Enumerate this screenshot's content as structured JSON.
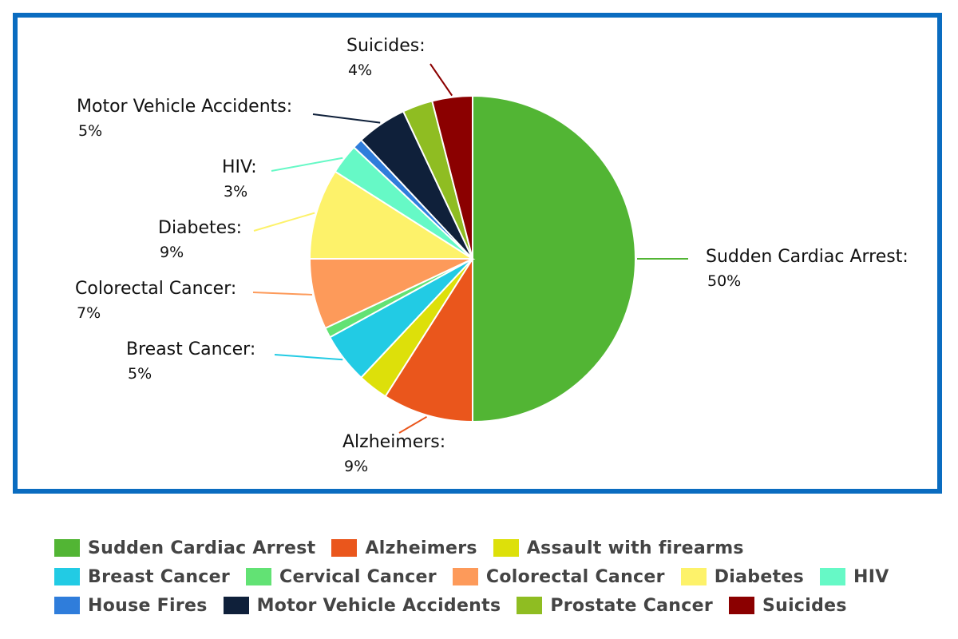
{
  "chart_data": {
    "type": "pie",
    "title": "",
    "slices": [
      {
        "label": "Sudden Cardiac Arrest",
        "value": 50,
        "color": "#52b534",
        "show_label": true
      },
      {
        "label": "Alzheimers",
        "value": 9,
        "color": "#ea561c",
        "show_label": true
      },
      {
        "label": "Assault with firearms",
        "value": 3,
        "color": "#dde00a",
        "show_label": false
      },
      {
        "label": "Breast Cancer",
        "value": 5,
        "color": "#22cbe4",
        "show_label": true
      },
      {
        "label": "Cervical Cancer",
        "value": 1,
        "color": "#62e274",
        "show_label": false
      },
      {
        "label": "Colorectal Cancer",
        "value": 7,
        "color": "#fd9a5a",
        "show_label": true
      },
      {
        "label": "Diabetes",
        "value": 9,
        "color": "#fdf26a",
        "show_label": true
      },
      {
        "label": "HIV",
        "value": 3,
        "color": "#66f9c6",
        "show_label": true
      },
      {
        "label": "House Fires",
        "value": 1,
        "color": "#2f7ddb",
        "show_label": false
      },
      {
        "label": "Motor Vehicle Accidents",
        "value": 5,
        "color": "#0f203a",
        "show_label": true
      },
      {
        "label": "Prostate Cancer",
        "value": 3,
        "color": "#8fbd22",
        "show_label": false
      },
      {
        "label": "Suicides",
        "value": 4,
        "color": "#8b0000",
        "show_label": true
      }
    ],
    "label_suffix": ":",
    "value_suffix": "%",
    "legend_position": "bottom"
  }
}
